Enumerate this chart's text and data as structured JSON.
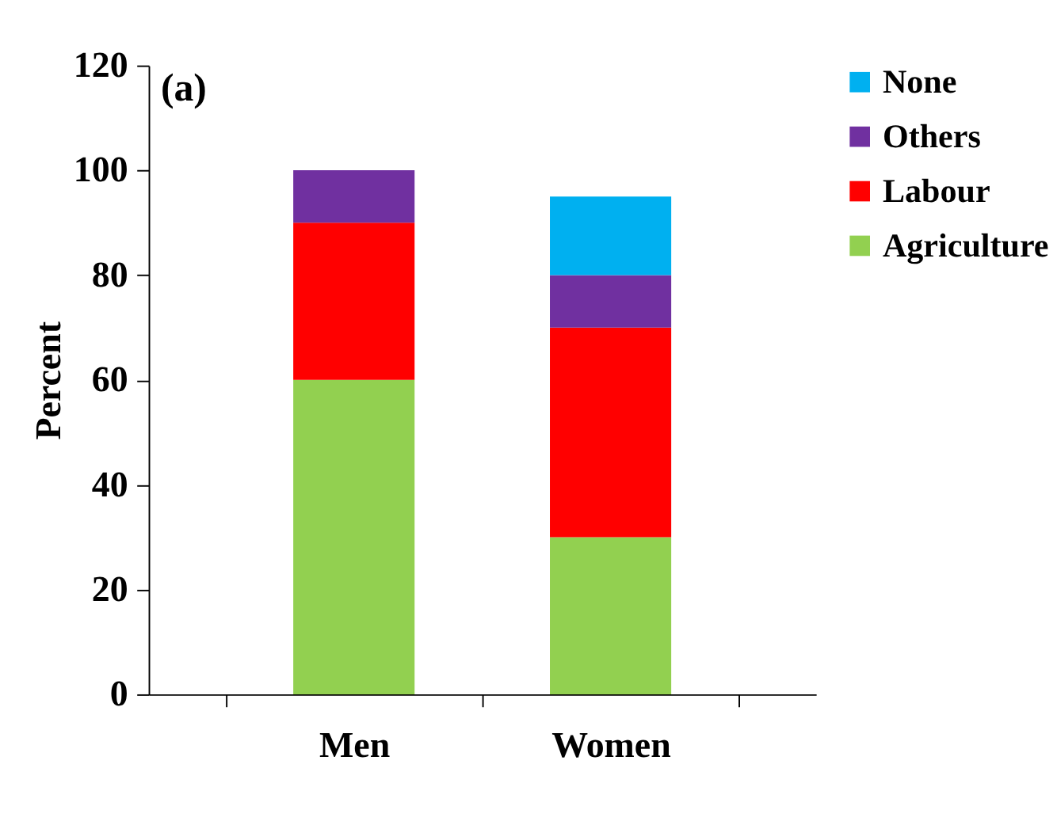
{
  "chart_data": {
    "type": "bar",
    "stacked": true,
    "ylabel": "Percent",
    "categories": [
      "Men",
      "Women"
    ],
    "series": [
      {
        "name": "Agriculture",
        "color": "#92d050",
        "values": [
          60,
          30
        ]
      },
      {
        "name": "Labour",
        "color": "#ff0000",
        "values": [
          30,
          40
        ]
      },
      {
        "name": "Others",
        "color": "#7030a0",
        "values": [
          10,
          10
        ]
      },
      {
        "name": "None",
        "color": "#00b0f0",
        "values": [
          null,
          15
        ]
      }
    ],
    "ylim": [
      0,
      120
    ],
    "yticks": [
      0,
      20,
      40,
      60,
      80,
      100,
      120
    ],
    "grid": false,
    "legend": "right",
    "annotations": [
      "(a)"
    ]
  }
}
